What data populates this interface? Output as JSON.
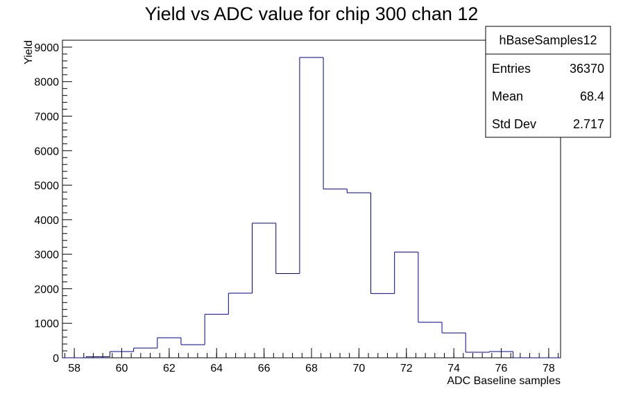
{
  "chart_data": {
    "type": "histogram",
    "title": "Yield vs ADC value for chip 300 chan 12",
    "xlabel": "ADC Baseline samples",
    "ylabel": "Yield",
    "xlim": [
      57.5,
      78.5
    ],
    "ylim": [
      0,
      9200
    ],
    "x_ticks": [
      58,
      60,
      62,
      64,
      66,
      68,
      70,
      72,
      74,
      76,
      78
    ],
    "y_ticks": [
      0,
      1000,
      2000,
      3000,
      4000,
      5000,
      6000,
      7000,
      8000,
      9000
    ],
    "bin_edges": [
      57.5,
      58.5,
      59.5,
      60.5,
      61.5,
      62.5,
      63.5,
      64.5,
      65.5,
      66.5,
      67.5,
      68.5,
      69.5,
      70.5,
      71.5,
      72.5,
      73.5,
      74.5,
      75.5,
      76.5,
      77.5,
      78.5
    ],
    "values": [
      0,
      30,
      180,
      280,
      580,
      380,
      1260,
      1870,
      3900,
      2440,
      8700,
      4890,
      4780,
      1860,
      3060,
      1030,
      720,
      160,
      180,
      0,
      0
    ],
    "line_color": "#000099",
    "grid": false,
    "stats_box": {
      "name": "hBaseSamples12",
      "rows": [
        {
          "label": "Entries",
          "value": "36370"
        },
        {
          "label": "Mean",
          "value": "68.4"
        },
        {
          "label": "Std Dev",
          "value": "2.717"
        }
      ]
    }
  }
}
